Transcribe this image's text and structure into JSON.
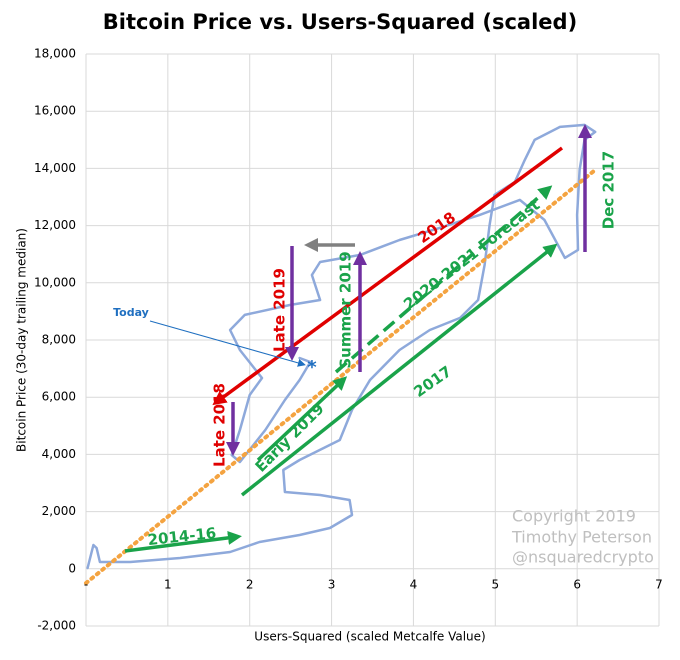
{
  "chart_data": {
    "type": "line",
    "title": "Bitcoin Price vs. Users-Squared (scaled)",
    "xlabel": "Users-Squared (scaled Metcalfe Value)",
    "ylabel": "Bitcoin Price (30-day trailing median)",
    "xlim": [
      0,
      7
    ],
    "xticks": [
      {
        "value": 0,
        "label": "-"
      },
      1,
      2,
      3,
      4,
      5,
      6,
      7
    ],
    "ylim": [
      -2000,
      18000
    ],
    "yticks": [
      {
        "value": -2000,
        "label": "-2,000"
      },
      0,
      {
        "value": 2000,
        "label": "2,000"
      },
      {
        "value": 4000,
        "label": "4,000"
      },
      {
        "value": 6000,
        "label": "6,000"
      },
      {
        "value": 8000,
        "label": "8,000"
      },
      {
        "value": 10000,
        "label": "10,000"
      },
      {
        "value": 12000,
        "label": "12,000"
      },
      {
        "value": 14000,
        "label": "14,000"
      },
      {
        "value": 16000,
        "label": "16,000"
      },
      {
        "value": 18000,
        "label": "18,000"
      }
    ],
    "grid": true,
    "series": [
      {
        "color": "#8ea9db",
        "style": "solid",
        "x": [
          0.02,
          0.09,
          0.13,
          0.17,
          0.54,
          1.15,
          1.76,
          2.12,
          2.61,
          2.98,
          3.25,
          3.22,
          2.86,
          2.43,
          2.41,
          2.61,
          3.1,
          3.25,
          3.47,
          3.83,
          4.2,
          4.57,
          4.79,
          4.87,
          4.93,
          4.99,
          5.24,
          5.36,
          5.48,
          5.79,
          6.09,
          6.22,
          6.09,
          6.03,
          6.0,
          6.01,
          5.85,
          5.6,
          5.3,
          4.81,
          4.32,
          3.83,
          3.35,
          2.86,
          2.76,
          2.86,
          2.49,
          1.94,
          1.76,
          1.88,
          2.15,
          2.0,
          1.88,
          1.78,
          1.88,
          2.19,
          2.43,
          2.61,
          2.74,
          2.61
        ],
        "values": [
          28,
          833,
          728,
          238,
          238,
          378,
          588,
          937,
          1182,
          1427,
          1882,
          2406,
          2581,
          2686,
          3455,
          3805,
          4504,
          5553,
          6603,
          7652,
          8351,
          8771,
          9400,
          10624,
          12023,
          13072,
          13527,
          14296,
          14995,
          15450,
          15520,
          15275,
          14995,
          13946,
          12373,
          11149,
          10869,
          12198,
          12897,
          12373,
          11918,
          11498,
          10974,
          10729,
          10274,
          9400,
          9225,
          8876,
          8351,
          7652,
          6673,
          6078,
          4854,
          3980,
          3735,
          4854,
          5903,
          6603,
          7232,
          7372
        ]
      },
      {
        "color": "#f4a340",
        "style": "dotted",
        "x": [
          0,
          6.2
        ],
        "values": [
          -500,
          13900
        ]
      }
    ],
    "annotations": [
      {
        "text": "Today",
        "color": "#1f6fc0"
      },
      {
        "text": "*",
        "color": "#1f6fc0"
      },
      {
        "text": "Late 2019",
        "color": "#e00000"
      },
      {
        "text": "Late 2018",
        "color": "#e00000"
      },
      {
        "text": "Summer 2019",
        "color": "#1aa34a"
      },
      {
        "text": "2018",
        "color": "#e00000"
      },
      {
        "text": "2020-2021 Forecast",
        "color": "#1aa34a"
      },
      {
        "text": "Early 2019",
        "color": "#1aa34a"
      },
      {
        "text": "2017",
        "color": "#1aa34a"
      },
      {
        "text": "Dec 2017",
        "color": "#1aa34a"
      },
      {
        "text": "2014-16",
        "color": "#1aa34a"
      },
      {
        "text": "Copyright 2019",
        "color": "#bfbfbf"
      },
      {
        "text": "Timothy Peterson",
        "color": "#bfbfbf"
      },
      {
        "text": "@nsquaredcrypto",
        "color": "#bfbfbf"
      }
    ]
  }
}
